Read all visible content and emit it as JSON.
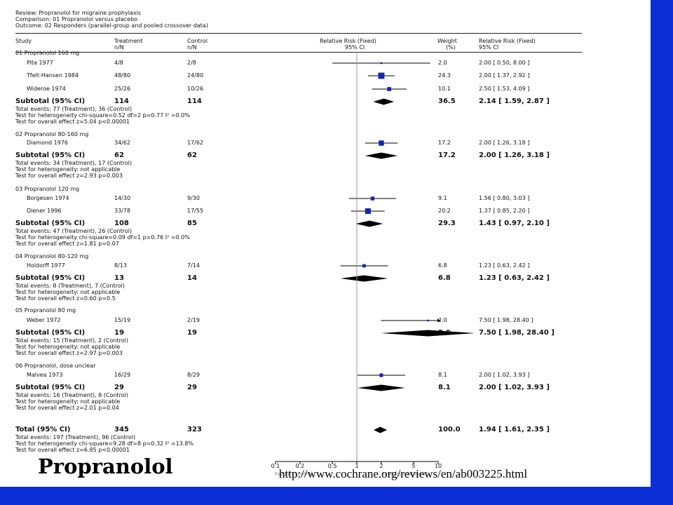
{
  "header": {
    "review": "Review:  Propranolol for migraine prophylaxis",
    "comparison": "Comparison:  01 Propranolol versus placebo",
    "outcome": "Outcome:  02 Responders (parallel-group and pooled crossover data)"
  },
  "columns": {
    "study": "Study",
    "treatment": [
      "Treatment",
      "n/N"
    ],
    "control": [
      "Control",
      "n/N"
    ],
    "rr_plot": [
      "Relative Risk (Fixed)",
      "95% CI"
    ],
    "weight": [
      "Weight",
      "(%)"
    ],
    "rr_text": [
      "Relative Risk (Fixed)",
      "95% CI"
    ]
  },
  "colors": {
    "background": "#0b2fd6",
    "marker": "#1428a8",
    "panel": "#ffffff"
  },
  "chart_data": {
    "type": "forest",
    "x_scale": "log",
    "xlim": [
      0.1,
      10
    ],
    "x_ticks": [
      "0.1",
      "0.2",
      "0.5",
      "1",
      "2",
      "5",
      "10"
    ],
    "favours_left": "Favours control",
    "favours_right": "Favours treatment",
    "groups": [
      {
        "title": "01 Propranolol 160 mg",
        "studies": [
          {
            "name": "Pita 1977",
            "treatment": "4/8",
            "control": "2/8",
            "rr": 2.0,
            "lo": 0.5,
            "hi": 8.0,
            "weight": "2.0",
            "ci_text": "2.00 [ 0.50, 8.00 ]"
          },
          {
            "name": "Tfelt-Hansen 1984",
            "treatment": "48/80",
            "control": "24/80",
            "rr": 2.0,
            "lo": 1.37,
            "hi": 2.92,
            "weight": "24.3",
            "ci_text": "2.00 [ 1.37, 2.92 ]"
          },
          {
            "name": "Wideroe 1974",
            "treatment": "25/26",
            "control": "10/26",
            "rr": 2.5,
            "lo": 1.53,
            "hi": 4.09,
            "weight": "10.1",
            "ci_text": "2.50 [ 1.53, 4.09 ]"
          }
        ],
        "subtotal": {
          "label": "Subtotal (95% CI)",
          "treatment": "114",
          "control": "114",
          "rr": 2.14,
          "lo": 1.59,
          "hi": 2.87,
          "weight": "36.5",
          "ci_text": "2.14 [ 1.59, 2.87 ]"
        },
        "notes": [
          "Total events: 77 (Treatment), 36 (Control)",
          "Test for heterogeneity chi-square=0.52 df=2 p=0.77 I² =0.0%",
          "Test for overall effect z=5.04  p<0.00001"
        ]
      },
      {
        "title": "02 Propranolol 80-160 mg",
        "studies": [
          {
            "name": "Diamond 1976",
            "treatment": "34/62",
            "control": "17/62",
            "rr": 2.0,
            "lo": 1.26,
            "hi": 3.18,
            "weight": "17.2",
            "ci_text": "2.00 [ 1.26, 3.18 ]"
          }
        ],
        "subtotal": {
          "label": "Subtotal (95% CI)",
          "treatment": "62",
          "control": "62",
          "rr": 2.0,
          "lo": 1.26,
          "hi": 3.18,
          "weight": "17.2",
          "ci_text": "2.00 [ 1.26, 3.18 ]"
        },
        "notes": [
          "Total events: 34 (Treatment), 17 (Control)",
          "Test for heterogeneity: not applicable",
          "Test for overall effect z=2.93  p=0.003"
        ]
      },
      {
        "title": "03 Propranolol 120 mg",
        "studies": [
          {
            "name": "Borgesen 1974",
            "treatment": "14/30",
            "control": "9/30",
            "rr": 1.56,
            "lo": 0.8,
            "hi": 3.03,
            "weight": "9.1",
            "ci_text": "1.56 [ 0.80, 3.03 ]"
          },
          {
            "name": "Diener 1996",
            "treatment": "33/78",
            "control": "17/55",
            "rr": 1.37,
            "lo": 0.85,
            "hi": 2.2,
            "weight": "20.2",
            "ci_text": "1.37 [ 0.85, 2.20 ]"
          }
        ],
        "subtotal": {
          "label": "Subtotal (95% CI)",
          "treatment": "108",
          "control": "85",
          "rr": 1.43,
          "lo": 0.97,
          "hi": 2.1,
          "weight": "29.3",
          "ci_text": "1.43 [ 0.97, 2.10 ]"
        },
        "notes": [
          "Total events: 47 (Treatment), 26 (Control)",
          "Test for heterogeneity chi-square=0.09 df=1 p=0.76 I² =0.0%",
          "Test for overall effect z=1.81  p=0.07"
        ]
      },
      {
        "title": "04 Propranolol 80-120 mg",
        "studies": [
          {
            "name": "Holdorff 1977",
            "treatment": "8/13",
            "control": "7/14",
            "rr": 1.23,
            "lo": 0.63,
            "hi": 2.42,
            "weight": "6.8",
            "ci_text": "1.23 [ 0.63, 2.42 ]"
          }
        ],
        "subtotal": {
          "label": "Subtotal (95% CI)",
          "treatment": "13",
          "control": "14",
          "rr": 1.23,
          "lo": 0.63,
          "hi": 2.42,
          "weight": "6.8",
          "ci_text": "1.23 [ 0.63, 2.42 ]"
        },
        "notes": [
          "Total events: 8 (Treatment), 7 (Control)",
          "Test for heterogeneity: not applicable",
          "Test for overall effect z=0.60  p=0.5"
        ]
      },
      {
        "title": "05 Propranolol 80 mg",
        "studies": [
          {
            "name": "Weber 1972",
            "treatment": "15/19",
            "control": "2/19",
            "rr": 7.5,
            "lo": 1.98,
            "hi": 28.4,
            "weight": "2.0",
            "ci_text": "7.50 [ 1.98, 28.40 ]"
          }
        ],
        "subtotal": {
          "label": "Subtotal (95% CI)",
          "treatment": "19",
          "control": "19",
          "rr": 7.5,
          "lo": 1.98,
          "hi": 28.4,
          "weight": "2.0",
          "ci_text": "7.50 [ 1.98, 28.40 ]"
        },
        "notes": [
          "Total events: 15 (Treatment), 2 (Control)",
          "Test for heterogeneity: not applicable",
          "Test for overall effect z=2.97  p=0.003"
        ]
      },
      {
        "title": "06 Propranolol, dose unclear",
        "studies": [
          {
            "name": "Malvea 1973",
            "treatment": "16/29",
            "control": "8/29",
            "rr": 2.0,
            "lo": 1.02,
            "hi": 3.93,
            "weight": "8.1",
            "ci_text": "2.00 [ 1.02, 3.93 ]"
          }
        ],
        "subtotal": {
          "label": "Subtotal (95% CI)",
          "treatment": "29",
          "control": "29",
          "rr": 2.0,
          "lo": 1.02,
          "hi": 3.93,
          "weight": "8.1",
          "ci_text": "2.00 [ 1.02, 3.93 ]"
        },
        "notes": [
          "Total events: 16 (Treatment), 8 (Control)",
          "Test for heterogeneity: not applicable",
          "Test for overall effect z=2.01  p=0.04"
        ]
      }
    ],
    "total": {
      "label": "Total (95% CI)",
      "treatment": "345",
      "control": "323",
      "rr": 1.94,
      "lo": 1.61,
      "hi": 2.35,
      "weight": "100.0",
      "ci_text": "1.94 [ 1.61, 2.35 ]",
      "notes": [
        "Total events: 197 (Treatment), 96 (Control)",
        "Test for heterogeneity chi-square=9.28 df=8 p=0.32 I² =13.8%",
        "Test for overall effect z=6.85  p<0.00001"
      ]
    }
  },
  "footer": {
    "title": "Propranolol",
    "url": "http://www.cochrane.org/reviews/en/ab003225.html"
  }
}
